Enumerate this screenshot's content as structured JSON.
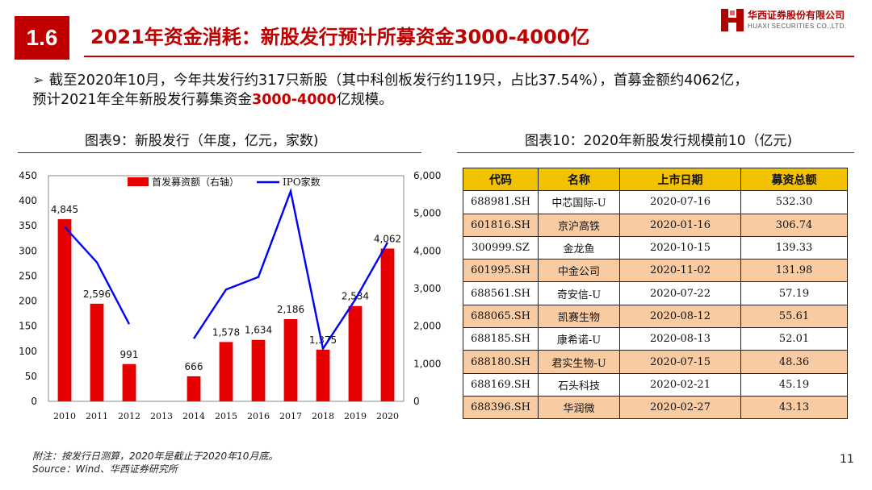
{
  "header": {
    "section_number": "1.6",
    "title": "2021年资金消耗：新股发行预计所募资金3000-4000亿",
    "logo_cn": "华西证券股份有限公司",
    "logo_en": "HUAXI SECURITIES CO.,LTD.",
    "brand_color": "#c00000"
  },
  "summary": {
    "bullet_glyph": "➢",
    "text_main": "截至2020年10月，今年共发行约317只新股（其中科创板发行约119只，占比37.54%），首募金额约4062亿，",
    "text_line2_pre": "预计2021年全年新股发行募集资金",
    "text_line2_highlight": "3000-4000",
    "text_line2_post": "亿规模。"
  },
  "captions": {
    "left": "图表9：新股发行（年度，亿元，家数)",
    "right": "图表10：2020年新股发行规模前10（亿元)"
  },
  "chart_data": {
    "type": "bar",
    "categories": [
      "2010",
      "2011",
      "2012",
      "2013",
      "2014",
      "2015",
      "2016",
      "2017",
      "2018",
      "2019",
      "2020"
    ],
    "series": [
      {
        "name": "首发募资额（右轴）",
        "kind": "bar",
        "axis": "right",
        "color": "#e60000",
        "values": [
          4845,
          2596,
          991,
          null,
          666,
          1578,
          1634,
          2186,
          1375,
          2534,
          4062
        ],
        "labels": [
          "4,845",
          "2,596",
          "991",
          "",
          "666",
          "1,578",
          "1,634",
          "2,186",
          "1,375",
          "2,534",
          "4,062"
        ]
      },
      {
        "name": "IPO家数",
        "kind": "line",
        "axis": "left",
        "color": "#0000ff",
        "values": [
          348,
          277,
          154,
          null,
          125,
          223,
          248,
          419,
          105,
          203,
          317
        ]
      }
    ],
    "left_axis": {
      "min": 0,
      "max": 450,
      "ticks": [
        "0",
        "50",
        "100",
        "150",
        "200",
        "250",
        "300",
        "350",
        "400",
        "450"
      ]
    },
    "right_axis": {
      "min": 0,
      "max": 6000,
      "ticks": [
        "0",
        "1,000",
        "2,000",
        "3,000",
        "4,000",
        "5,000",
        "6,000"
      ]
    },
    "legend_position": "top"
  },
  "table": {
    "headers": [
      "代码",
      "名称",
      "上市日期",
      "募资总额"
    ],
    "header_color": "#f2c100",
    "stripe_color": "#f8cba3",
    "rows": [
      [
        "688981.SH",
        "中芯国际-U",
        "2020-07-16",
        "532.30"
      ],
      [
        "601816.SH",
        "京沪高铁",
        "2020-01-16",
        "306.74"
      ],
      [
        "300999.SZ",
        "金龙鱼",
        "2020-10-15",
        "139.33"
      ],
      [
        "601995.SH",
        "中金公司",
        "2020-11-02",
        "131.98"
      ],
      [
        "688561.SH",
        "奇安信-U",
        "2020-07-22",
        "57.19"
      ],
      [
        "688065.SH",
        "凯赛生物",
        "2020-08-12",
        "55.61"
      ],
      [
        "688185.SH",
        "康希诺-U",
        "2020-08-13",
        "52.01"
      ],
      [
        "688180.SH",
        "君实生物-U",
        "2020-07-15",
        "48.36"
      ],
      [
        "688169.SH",
        "石头科技",
        "2020-02-21",
        "45.19"
      ],
      [
        "688396.SH",
        "华润微",
        "2020-02-27",
        "43.13"
      ]
    ]
  },
  "footer": {
    "note": "附注：按发行日测算，2020年是截止于2020年10月底。",
    "source": "Source：Wind、华西证券研究所",
    "page_number": "11"
  }
}
